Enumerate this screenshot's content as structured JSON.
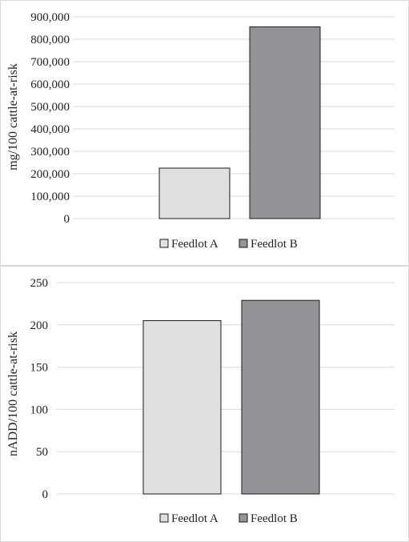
{
  "chart_data": [
    {
      "type": "bar",
      "categories": [
        "Feedlot A",
        "Feedlot B"
      ],
      "values": [
        225000,
        855000
      ],
      "title": "",
      "xlabel": "",
      "ylabel": "mg/100 cattle-at-risk",
      "ylim": [
        0,
        900000
      ],
      "yticks": [
        0,
        100000,
        200000,
        300000,
        400000,
        500000,
        600000,
        700000,
        800000,
        900000
      ],
      "ytick_labels": [
        "0",
        "100,000",
        "200,000",
        "300,000",
        "400,000",
        "500,000",
        "600,000",
        "700,000",
        "800,000",
        "900,000"
      ],
      "grid": true,
      "legend": "bottom",
      "legend_entries": [
        "Feedlot A",
        "Feedlot B"
      ],
      "colors": [
        "#e0e0e2",
        "#939497"
      ]
    },
    {
      "type": "bar",
      "categories": [
        "Feedlot A",
        "Feedlot B"
      ],
      "values": [
        205,
        229
      ],
      "title": "",
      "xlabel": "",
      "ylabel": "nADD/100 cattle-at-risk",
      "ylim": [
        0,
        250
      ],
      "yticks": [
        0,
        50,
        100,
        150,
        200,
        250
      ],
      "ytick_labels": [
        "0",
        "50",
        "100",
        "150",
        "200",
        "250"
      ],
      "grid": true,
      "legend": "bottom",
      "legend_entries": [
        "Feedlot A",
        "Feedlot B"
      ],
      "colors": [
        "#e0e0e2",
        "#939497"
      ]
    }
  ]
}
